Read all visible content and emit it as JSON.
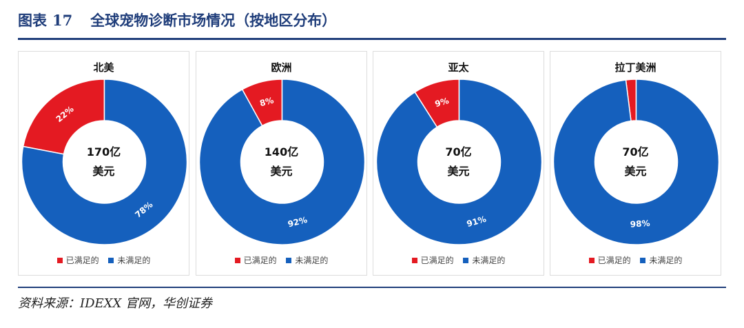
{
  "figure": {
    "label": "图表",
    "number": "17",
    "title": "全球宠物诊断市场情况（按地区分布）"
  },
  "legend": {
    "met": "已满足的",
    "unmet": "未满足的"
  },
  "colors": {
    "met": "#e41a22",
    "unmet": "#1560bd",
    "rule": "#1f3d7a"
  },
  "chart_data": [
    {
      "type": "pie",
      "title": "北美",
      "center_value": "170亿",
      "center_unit": "美元",
      "categories": [
        "已满足的",
        "未满足的"
      ],
      "values": [
        22,
        78
      ],
      "labels": [
        "22%",
        "78%"
      ]
    },
    {
      "type": "pie",
      "title": "欧洲",
      "center_value": "140亿",
      "center_unit": "美元",
      "categories": [
        "已满足的",
        "未满足的"
      ],
      "values": [
        8,
        92
      ],
      "labels": [
        "8%",
        "92%"
      ]
    },
    {
      "type": "pie",
      "title": "亚太",
      "center_value": "70亿",
      "center_unit": "美元",
      "categories": [
        "已满足的",
        "未满足的"
      ],
      "values": [
        9,
        91
      ],
      "labels": [
        "9%",
        "91%"
      ]
    },
    {
      "type": "pie",
      "title": "拉丁美洲",
      "center_value": "70亿",
      "center_unit": "美元",
      "categories": [
        "已满足的",
        "未满足的"
      ],
      "values": [
        2,
        98
      ],
      "labels": [
        "",
        "98%"
      ]
    }
  ],
  "source": "资料来源：IDEXX 官网，华创证券"
}
